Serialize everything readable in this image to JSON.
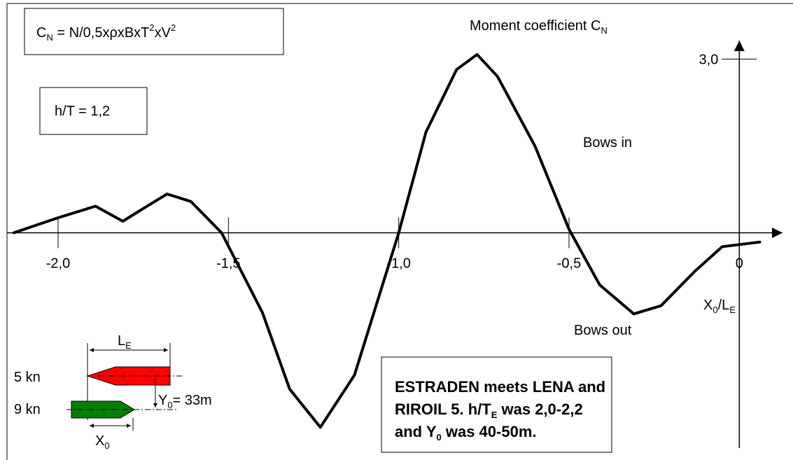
{
  "chart_data": {
    "type": "line",
    "x": [
      -2.13,
      -2.0,
      -1.89,
      -1.81,
      -1.75,
      -1.68,
      -1.61,
      -1.52,
      -1.4,
      -1.32,
      -1.23,
      -1.13,
      -1.0,
      -0.92,
      -0.83,
      -0.77,
      -0.71,
      -0.6,
      -0.5,
      -0.41,
      -0.31,
      -0.23,
      -0.13,
      -0.05,
      0.06
    ],
    "values": [
      0.0,
      0.26,
      0.46,
      0.2,
      0.42,
      0.67,
      0.54,
      0.0,
      -1.38,
      -2.7,
      -3.36,
      -2.46,
      0.0,
      1.74,
      2.82,
      3.08,
      2.7,
      1.5,
      0.06,
      -0.9,
      -1.4,
      -1.26,
      -0.66,
      -0.24,
      -0.16
    ],
    "color": "#000000",
    "xlim": [
      -2.15,
      0.1
    ],
    "ylim": [
      -3.9,
      3.9
    ],
    "xticks": [
      {
        "value": -2.0,
        "label": "-2,0"
      },
      {
        "value": -1.5,
        "label": "-1,5"
      },
      {
        "value": -1.0,
        "label": "-1,0"
      },
      {
        "value": -0.5,
        "label": "-0,5"
      },
      0
    ],
    "yticks": [
      {
        "value": 3.0,
        "label": "3,0"
      }
    ],
    "ylabel": [
      "Moment coefficient C",
      "N"
    ],
    "xlabel": [
      "X",
      "0",
      "/L",
      "E"
    ],
    "annotations": {
      "formula": [
        "C",
        "N",
        " = N/0,5xρxBxT",
        "2",
        "xV",
        "2"
      ],
      "ratio": "h/T = 1,2",
      "upper_region": "Bows in",
      "lower_region": "Bows out",
      "note": [
        [
          "ESTRADEN meets LENA and"
        ],
        [
          "RIROIL 5. h/T",
          "E",
          " was 2,0-2,2"
        ],
        [
          "and Y",
          "0",
          " was 40-50m."
        ]
      ],
      "inset": {
        "speed_1": "5 kn",
        "speed_2": "9 kn",
        "length": [
          "L",
          "E"
        ],
        "offset": [
          "Y",
          "0",
          "= 33m"
        ],
        "distance": [
          "X",
          "0"
        ]
      }
    }
  }
}
